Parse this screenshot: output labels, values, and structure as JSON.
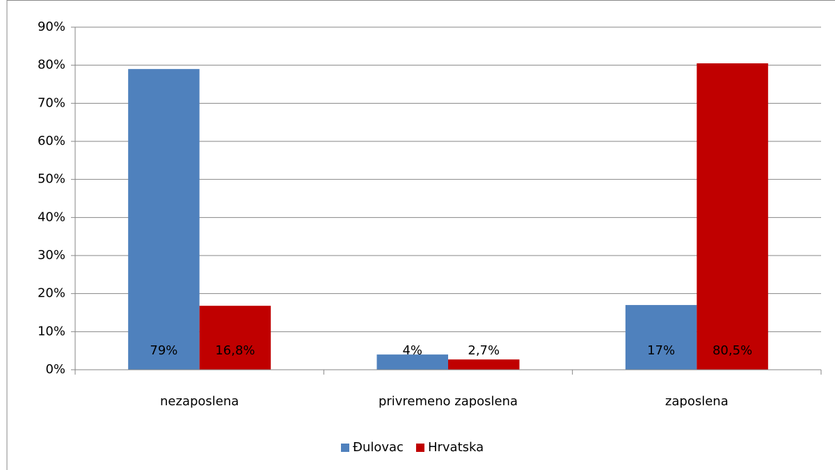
{
  "chart_data": {
    "type": "bar",
    "categories": [
      "nezaposlena",
      "privremeno zaposlena",
      "zaposlena"
    ],
    "series": [
      {
        "name": "Đulovac",
        "color": "#4f81bd",
        "values": [
          79,
          4,
          17
        ],
        "value_labels": [
          "79%",
          "4%",
          "17%"
        ]
      },
      {
        "name": "Hrvatska",
        "color": "#c00000",
        "values": [
          16.8,
          2.7,
          80.5
        ],
        "value_labels": [
          "16,8%",
          "2,7%",
          "80,5%"
        ]
      }
    ],
    "ylim": [
      0,
      90
    ],
    "yticks": [
      {
        "value": 0,
        "label": "0%"
      },
      {
        "value": 10,
        "label": "10%"
      },
      {
        "value": 20,
        "label": "20%"
      },
      {
        "value": 30,
        "label": "30%"
      },
      {
        "value": 40,
        "label": "40%"
      },
      {
        "value": 50,
        "label": "50%"
      },
      {
        "value": 60,
        "label": "60%"
      },
      {
        "value": 70,
        "label": "70%"
      },
      {
        "value": 80,
        "label": "80%"
      },
      {
        "value": 90,
        "label": "90%"
      }
    ],
    "grid": true,
    "legend": "bottom"
  }
}
